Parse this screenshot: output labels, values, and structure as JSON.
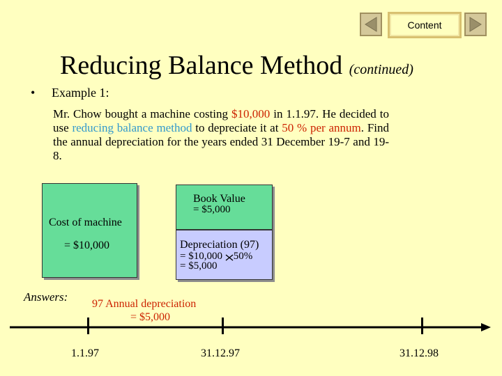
{
  "nav": {
    "prev_icon": "triangle-left-icon",
    "next_icon": "triangle-right-icon",
    "content_label": "Content"
  },
  "title": {
    "main": "Reducing Balance Method",
    "sub": "(continued)"
  },
  "example": {
    "bullet": "•",
    "heading": "Example 1:",
    "para": {
      "p1": "Mr. Chow bought a machine costing ",
      "cost": "$10,000",
      "p2": " in 1.1.97.  He decided to use ",
      "method": "reducing balance method",
      "p3": " to depreciate it at ",
      "rate": "50 % per annum",
      "p4": ".  Find the annual depreciation for the years ended 31 December 19-7 and 19-8."
    }
  },
  "diagram": {
    "cost_label": "Cost of machine",
    "cost_value": "= $10,000",
    "book_value_label": "Book Value",
    "book_value_value": "= $5,000",
    "dep_label": "Depreciation (97)",
    "dep_calc_a": "= $10,000",
    "dep_calc_b": "50%",
    "dep_result": "= $5,000"
  },
  "answers": {
    "label": "Answers:",
    "line1": "97 Annual depreciation",
    "line2": "= $5,000"
  },
  "timeline": {
    "dates": [
      "1.1.97",
      "31.12.97",
      "31.12.98"
    ]
  }
}
